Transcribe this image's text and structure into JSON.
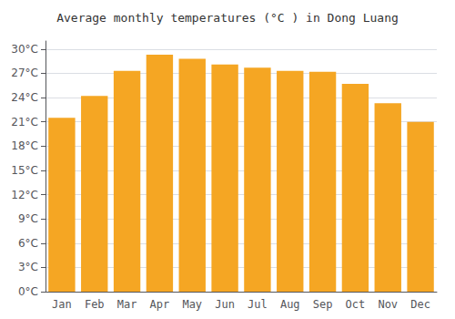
{
  "chart_data": {
    "type": "bar",
    "title": "Average monthly temperatures (°C ) in Dong Luang",
    "categories": [
      "Jan",
      "Feb",
      "Mar",
      "Apr",
      "May",
      "Jun",
      "Jul",
      "Aug",
      "Sep",
      "Oct",
      "Nov",
      "Dec"
    ],
    "values": [
      21.5,
      24.2,
      27.3,
      29.3,
      28.8,
      28.1,
      27.7,
      27.3,
      27.2,
      25.7,
      23.3,
      21.0
    ],
    "color": "#F5A623",
    "ylim": [
      0,
      31
    ],
    "yticks": [
      {
        "value": 0,
        "label": "0°C"
      },
      {
        "value": 3,
        "label": "3°C"
      },
      {
        "value": 6,
        "label": "6°C"
      },
      {
        "value": 9,
        "label": "9°C"
      },
      {
        "value": 12,
        "label": "12°C"
      },
      {
        "value": 15,
        "label": "15°C"
      },
      {
        "value": 18,
        "label": "18°C"
      },
      {
        "value": 21,
        "label": "21°C"
      },
      {
        "value": 24,
        "label": "24°C"
      },
      {
        "value": 27,
        "label": "27°C"
      },
      {
        "value": 30,
        "label": "30°C"
      }
    ],
    "grid": true
  }
}
